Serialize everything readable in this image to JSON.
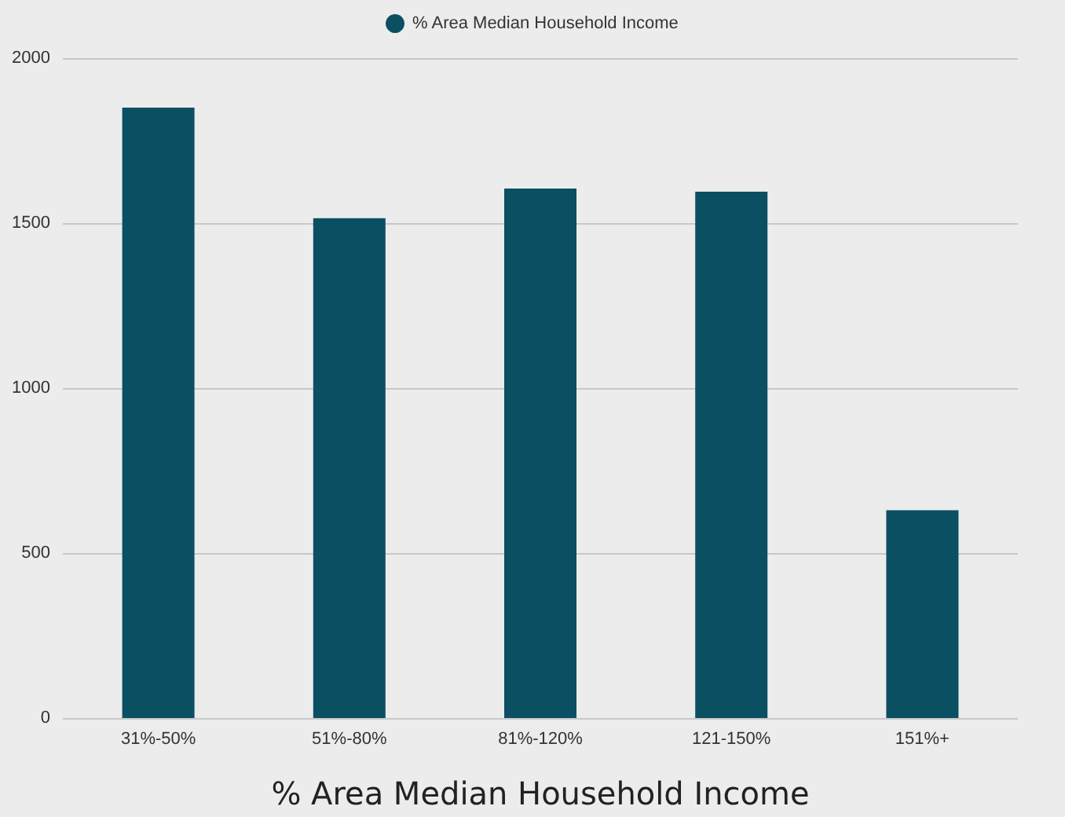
{
  "chart_data": {
    "type": "bar",
    "xlabel": "% Area Median Household Income",
    "categories": [
      "31%-50%",
      "51%-80%",
      "81%-120%",
      "121-150%",
      "151%+"
    ],
    "series": [
      {
        "name": "% Area Median Household Income",
        "color": "#0b4f63",
        "values": [
          1850,
          1515,
          1605,
          1595,
          630
        ]
      }
    ],
    "ylim": [
      0,
      2000
    ],
    "yticks": [
      0,
      500,
      1000,
      1500,
      2000
    ],
    "grid": "y",
    "legend": "top"
  }
}
